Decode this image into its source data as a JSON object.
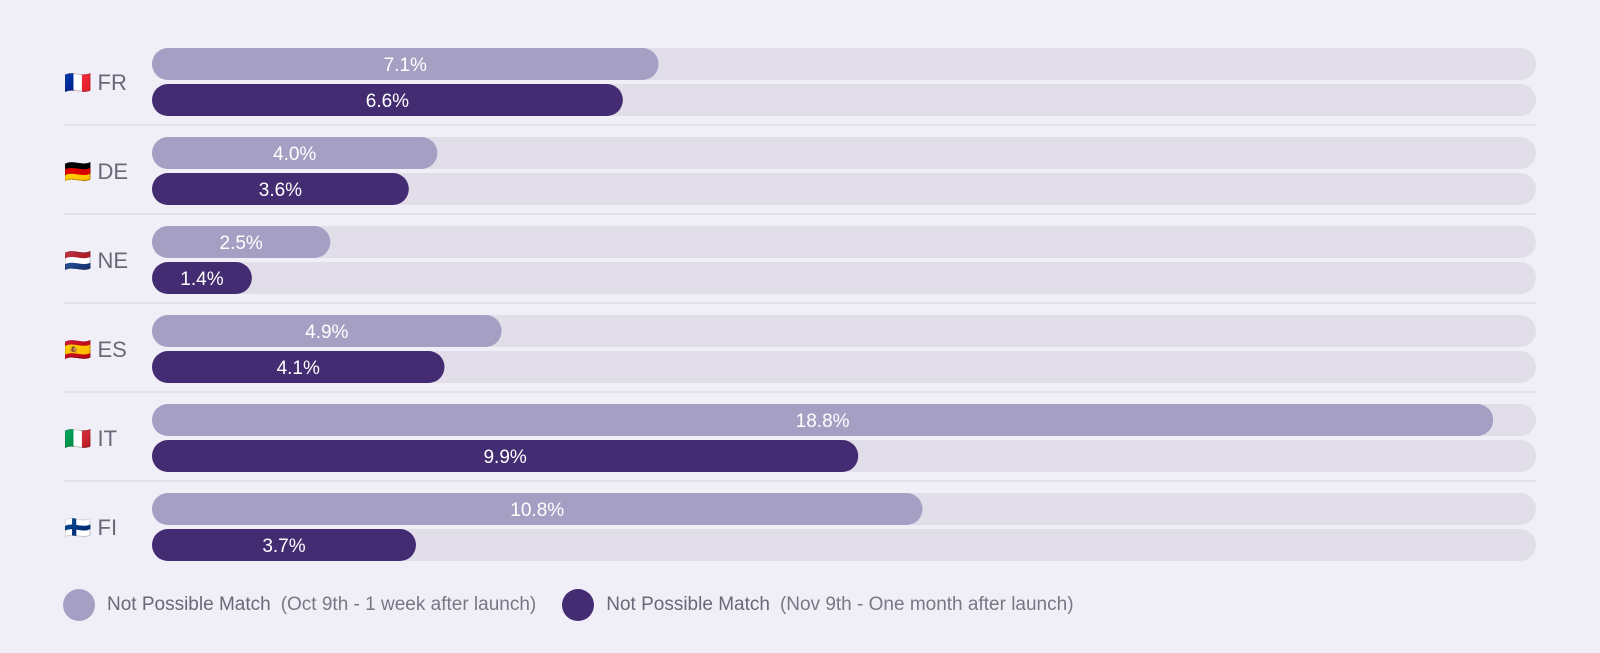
{
  "chart_data": {
    "type": "bar",
    "orientation": "horizontal",
    "categories": [
      "FR",
      "DE",
      "NE",
      "ES",
      "IT",
      "FI"
    ],
    "category_flags": [
      "🇫🇷",
      "🇩🇪",
      "🇳🇱",
      "🇪🇸",
      "🇮🇹",
      "🇫🇮"
    ],
    "xlim": [
      0,
      19.4
    ],
    "series": [
      {
        "name": "Not Possible Match",
        "note": "(Oct 9th - 1 week after launch)",
        "color": "#A59FC3",
        "values": [
          7.1,
          4.0,
          2.5,
          4.9,
          18.8,
          10.8
        ],
        "labels": [
          "7.1%",
          "4.0%",
          "2.5%",
          "4.9%",
          "18.8%",
          "10.8%"
        ]
      },
      {
        "name": "Not Possible Match",
        "note": "(Nov 9th - One month after launch)",
        "color": "#432C72",
        "values": [
          6.6,
          3.6,
          1.4,
          4.1,
          9.9,
          3.7
        ],
        "labels": [
          "6.6%",
          "3.6%",
          "1.4%",
          "4.1%",
          "9.9%",
          "3.7%"
        ]
      }
    ],
    "track_color": "#E1DEEA",
    "separator_color": "#D6D3DF",
    "grid": false,
    "legend_position": "bottom-left"
  }
}
